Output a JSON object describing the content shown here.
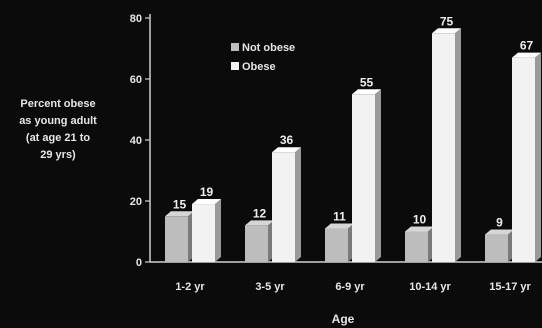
{
  "chart_data": {
    "type": "bar",
    "title": "",
    "ylabel_lines": [
      "Percent obese",
      "as young adult",
      "(at age 21 to",
      "29 yrs)"
    ],
    "xlabel": "Age",
    "ylim": [
      0,
      80
    ],
    "yticks": [
      0,
      20,
      40,
      60,
      80
    ],
    "grid": false,
    "legend_position": "top-left",
    "categories": [
      "1-2 yr",
      "3-5 yr",
      "6-9 yr",
      "10-14 yr",
      "15-17 yr"
    ],
    "series": [
      {
        "name": "Not obese",
        "values": [
          15,
          12,
          11,
          10,
          9
        ],
        "color": "#bdbdbd"
      },
      {
        "name": "Obese",
        "values": [
          19,
          36,
          55,
          75,
          67
        ],
        "color": "#f2f2f2"
      }
    ]
  }
}
